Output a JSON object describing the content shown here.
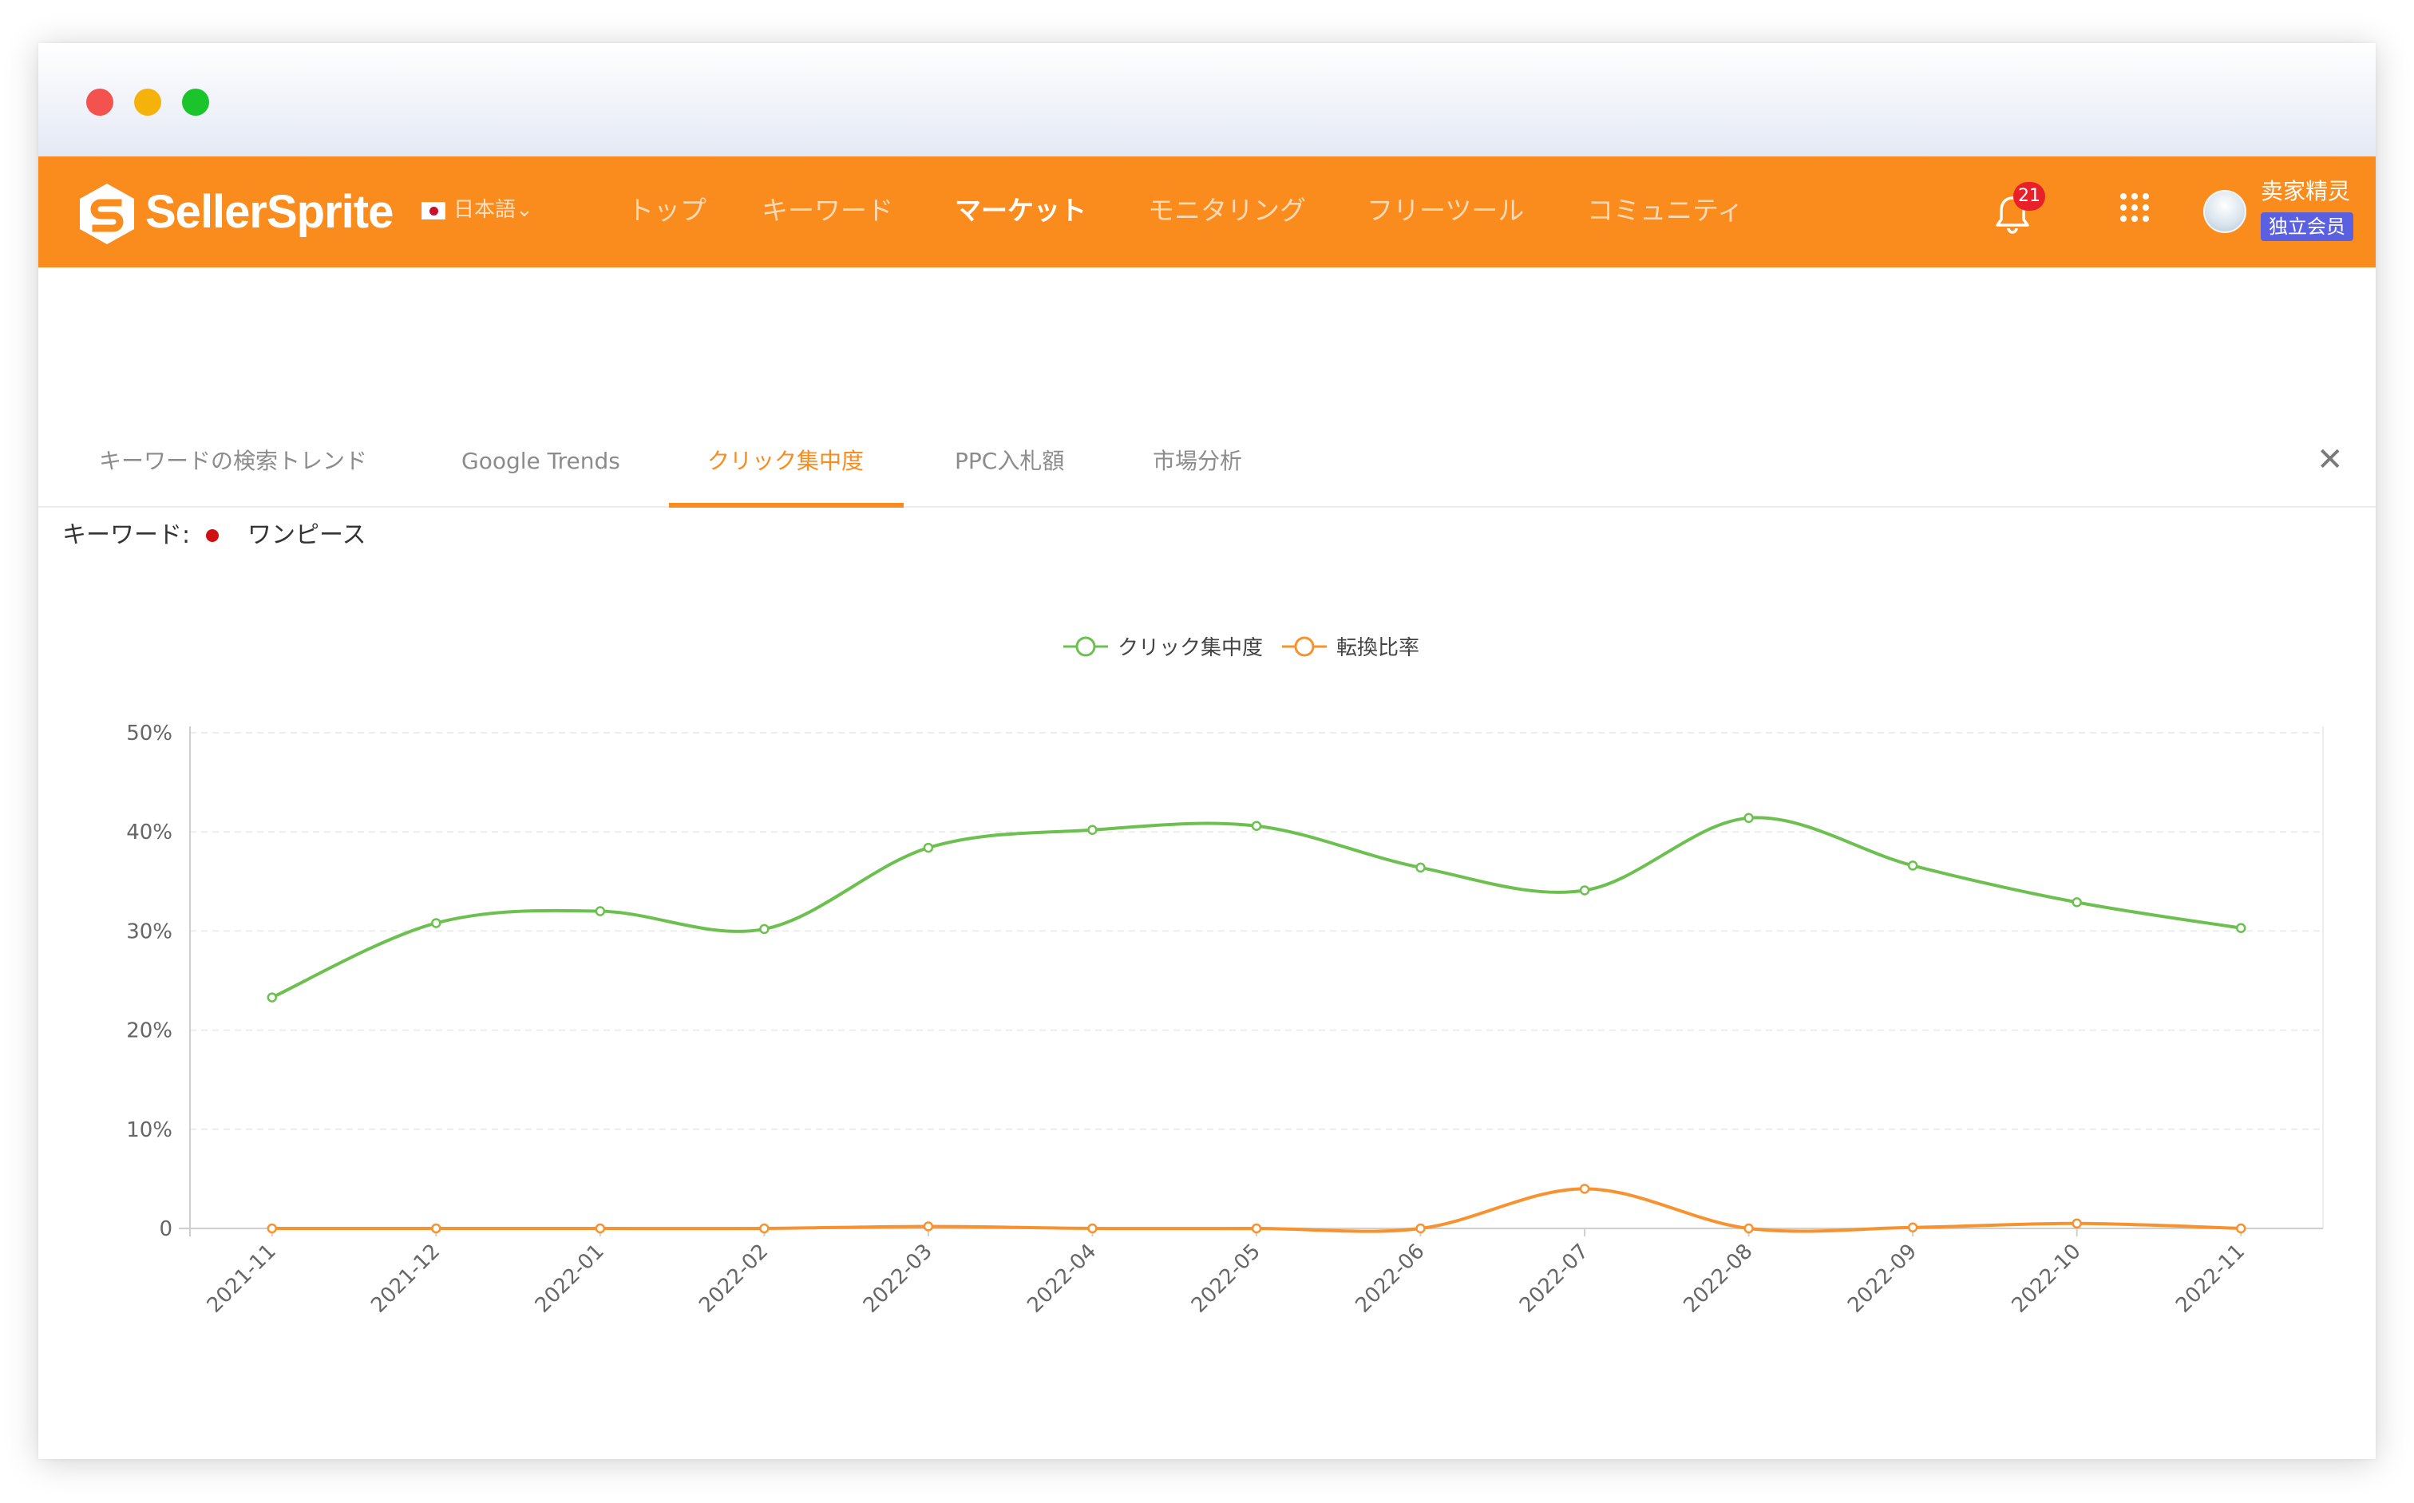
{
  "nav": {
    "brand": "SellerSprite",
    "language": "日本語⌄",
    "items": [
      {
        "label": "トップ",
        "active": false
      },
      {
        "label": "キーワード",
        "active": false
      },
      {
        "label": "マーケット",
        "active": true
      },
      {
        "label": "モニタリング",
        "active": false
      },
      {
        "label": "フリーツール",
        "active": false
      },
      {
        "label": "コミュニティ",
        "active": false
      }
    ],
    "notification_count": "21",
    "user_name": "卖家精灵",
    "member_label": "独立会员",
    "accent": "#fa8c1e"
  },
  "tabs": {
    "items": [
      {
        "label": "キーワードの検索トレンド",
        "active": false
      },
      {
        "label": "Google Trends",
        "active": false
      },
      {
        "label": "クリック集中度",
        "active": true
      },
      {
        "label": "PPC入札額",
        "active": false
      },
      {
        "label": "市場分析",
        "active": false
      }
    ],
    "close_label": "✕"
  },
  "keyword": {
    "label": "キーワード:",
    "value": "ワンピース"
  },
  "chart_data": {
    "type": "line",
    "x": [
      "2021-11",
      "2021-12",
      "2022-01",
      "2022-02",
      "2022-03",
      "2022-04",
      "2022-05",
      "2022-06",
      "2022-07",
      "2022-08",
      "2022-09",
      "2022-10",
      "2022-11"
    ],
    "series": [
      {
        "name": "クリック集中度",
        "color": "#6cc04f",
        "values": [
          23.3,
          30.8,
          32.0,
          30.2,
          38.4,
          40.2,
          40.6,
          36.4,
          34.1,
          41.4,
          36.6,
          32.9,
          30.3
        ]
      },
      {
        "name": "転換比率",
        "color": "#f7922e",
        "values": [
          0,
          0,
          0,
          0,
          0.2,
          0,
          0,
          0,
          4.0,
          0,
          0.1,
          0.5,
          0
        ]
      }
    ],
    "ylim": [
      0,
      50
    ],
    "yticks": [
      "0",
      "10%",
      "20%",
      "30%",
      "40%",
      "50%"
    ],
    "legend_position": "top-center",
    "grid": true
  }
}
